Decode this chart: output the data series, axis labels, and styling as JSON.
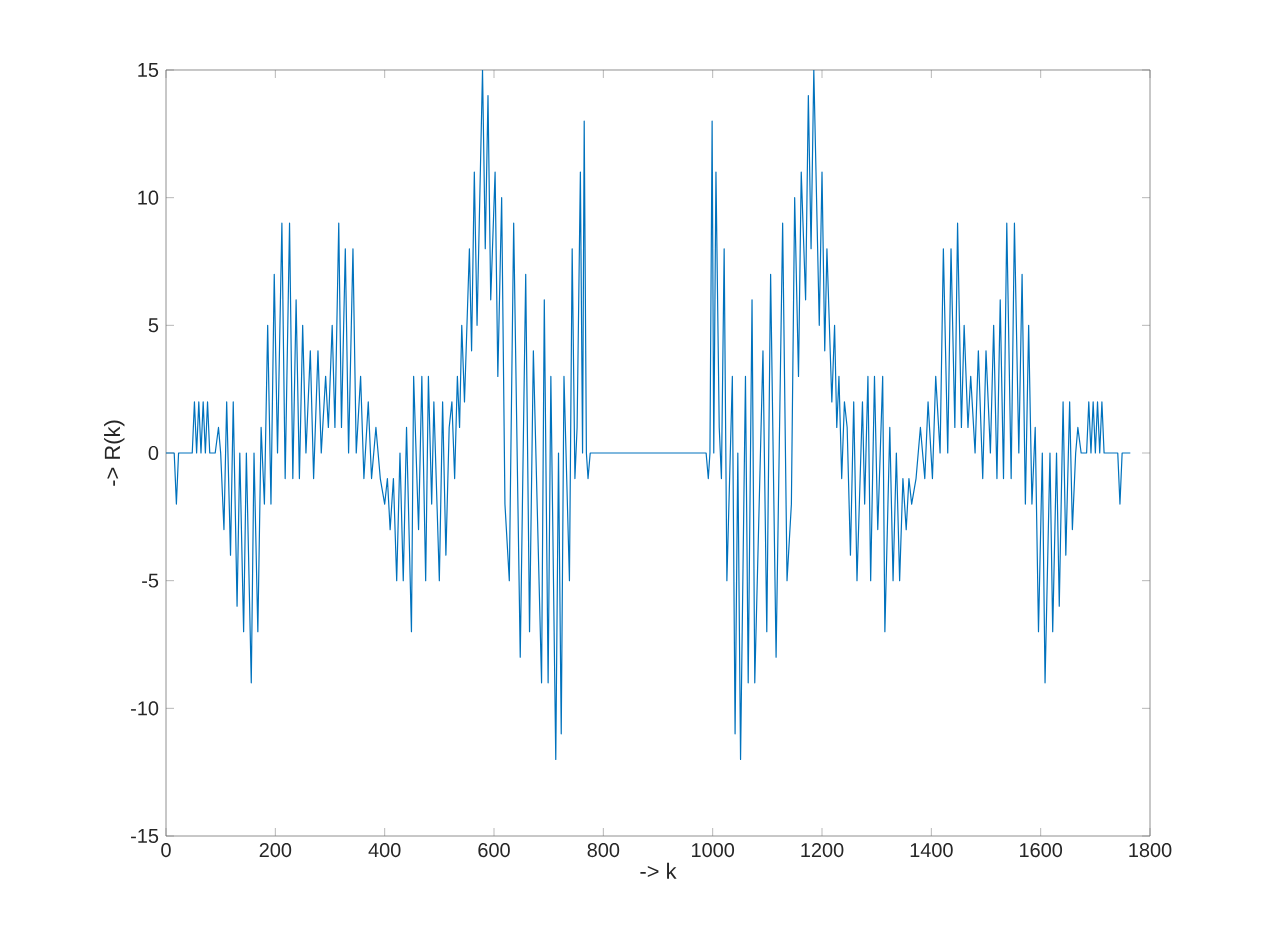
{
  "chart_data": {
    "type": "line",
    "xlabel": "-> k",
    "ylabel": "-> R(k)",
    "xlim": [
      0,
      1800
    ],
    "ylim": [
      -15,
      15
    ],
    "xticks": [
      0,
      200,
      400,
      600,
      800,
      1000,
      1200,
      1400,
      1600,
      1800
    ],
    "yticks": [
      -15,
      -10,
      -5,
      0,
      5,
      10,
      15
    ],
    "series": [
      {
        "color": "#0072bd",
        "x": [
          0,
          15,
          19,
          23,
          48,
          52,
          56,
          60,
          64,
          68,
          72,
          76,
          80,
          90,
          96,
          100,
          106,
          111,
          118,
          123,
          130,
          135,
          142,
          147,
          156,
          161,
          168,
          174,
          180,
          186,
          192,
          198,
          204,
          212,
          218,
          226,
          232,
          238,
          244,
          250,
          256,
          264,
          270,
          278,
          284,
          292,
          297,
          304,
          309,
          316,
          321,
          328,
          334,
          342,
          348,
          356,
          362,
          370,
          376,
          384,
          392,
          400,
          405,
          410,
          416,
          422,
          428,
          434,
          440,
          449,
          453,
          462,
          468,
          475,
          480,
          486,
          490,
          500,
          506,
          512,
          518,
          523,
          528,
          533,
          537,
          541,
          546,
          555,
          559,
          564,
          569,
          579,
          584,
          589,
          594,
          602,
          607,
          614,
          620,
          628,
          636,
          648,
          658,
          665,
          672,
          687,
          692,
          699,
          704,
          713,
          718,
          723,
          728,
          738,
          743,
          748,
          752,
          758,
          762,
          765,
          769,
          772,
          776,
          988,
          992,
          995,
          999,
          1002,
          1006,
          1012,
          1016,
          1021,
          1026,
          1036,
          1041,
          1046,
          1051,
          1060,
          1065,
          1072,
          1077,
          1092,
          1099,
          1106,
          1116,
          1128,
          1136,
          1144,
          1150,
          1157,
          1162,
          1170,
          1175,
          1180,
          1185,
          1195,
          1200,
          1205,
          1209,
          1218,
          1223,
          1227,
          1231,
          1236,
          1241,
          1246,
          1252,
          1258,
          1264,
          1274,
          1278,
          1284,
          1289,
          1296,
          1302,
          1311,
          1315,
          1324,
          1330,
          1336,
          1342,
          1348,
          1354,
          1359,
          1364,
          1372,
          1380,
          1388,
          1394,
          1402,
          1408,
          1416,
          1422,
          1430,
          1436,
          1443,
          1448,
          1455,
          1460,
          1467,
          1472,
          1480,
          1486,
          1494,
          1500,
          1508,
          1514,
          1520,
          1526,
          1532,
          1538,
          1546,
          1552,
          1560,
          1566,
          1572,
          1578,
          1584,
          1590,
          1596,
          1603,
          1608,
          1617,
          1622,
          1629,
          1634,
          1641,
          1646,
          1653,
          1658,
          1664,
          1668,
          1674,
          1684,
          1688,
          1692,
          1696,
          1700,
          1704,
          1708,
          1712,
          1716,
          1741,
          1745,
          1749,
          1764
        ],
        "values": [
          0,
          0,
          -2,
          0,
          0,
          2,
          0,
          2,
          0,
          2,
          0,
          2,
          0,
          0,
          1,
          0,
          -3,
          2,
          -4,
          2,
          -6,
          0,
          -7,
          0,
          -9,
          0,
          -7,
          1,
          -2,
          5,
          -2,
          7,
          0,
          9,
          -1,
          9,
          -1,
          6,
          -1,
          5,
          0,
          4,
          -1,
          4,
          0,
          3,
          1,
          5,
          1,
          9,
          1,
          8,
          0,
          8,
          0,
          3,
          -1,
          2,
          -1,
          1,
          -1,
          -2,
          -1,
          -3,
          -1,
          -5,
          0,
          -5,
          1,
          -7,
          3,
          -3,
          3,
          -5,
          3,
          -2,
          2,
          -5,
          2,
          -4,
          1,
          2,
          -1,
          3,
          1,
          5,
          2,
          8,
          4,
          11,
          5,
          15,
          8,
          14,
          6,
          11,
          3,
          10,
          -2,
          -5,
          9,
          -8,
          7,
          -7,
          4,
          -9,
          6,
          -9,
          3,
          -12,
          0,
          -11,
          3,
          -5,
          8,
          -1,
          1,
          11,
          0,
          13,
          0,
          -1,
          0,
          0,
          -1,
          0,
          13,
          0,
          11,
          1,
          -1,
          8,
          -5,
          3,
          -11,
          0,
          -12,
          3,
          -9,
          6,
          -9,
          4,
          -7,
          7,
          -8,
          9,
          -5,
          -2,
          10,
          3,
          11,
          6,
          14,
          8,
          15,
          5,
          11,
          4,
          8,
          2,
          5,
          1,
          3,
          -1,
          2,
          1,
          -4,
          2,
          -5,
          2,
          -2,
          3,
          -5,
          3,
          -3,
          3,
          -7,
          1,
          -5,
          0,
          -5,
          -1,
          -3,
          -1,
          -2,
          -1,
          1,
          -1,
          2,
          -1,
          3,
          0,
          8,
          0,
          8,
          1,
          9,
          1,
          5,
          1,
          3,
          0,
          4,
          -1,
          4,
          0,
          5,
          -1,
          6,
          -1,
          9,
          -1,
          9,
          0,
          7,
          -2,
          5,
          -2,
          1,
          -7,
          0,
          -9,
          0,
          -7,
          0,
          -6,
          2,
          -4,
          2,
          -3,
          0,
          1,
          0,
          0,
          2,
          0,
          2,
          0,
          2,
          0,
          2,
          0,
          0,
          -2,
          0,
          0
        ]
      }
    ]
  }
}
